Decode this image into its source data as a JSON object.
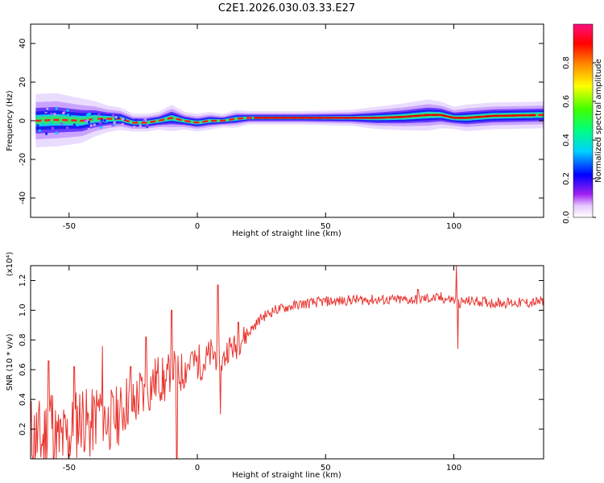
{
  "chart_data": [
    {
      "type": "heatmap",
      "title": "C2E1.2026.030.03.33.E27",
      "xlabel": "Height of straight line (km)",
      "ylabel": "Frequency (Hz)",
      "xlim": [
        -65,
        135
      ],
      "ylim": [
        -50,
        50
      ],
      "xticks": [
        -50,
        0,
        50,
        100
      ],
      "yticks": [
        -40,
        -20,
        0,
        20,
        40
      ],
      "colorbar": {
        "label": "Normalized spectral amplitude",
        "range": [
          0,
          1
        ],
        "ticks": [
          0.0,
          0.2,
          0.4,
          0.6,
          0.8
        ]
      },
      "band": {
        "x": [
          -63,
          -55,
          -45,
          -40,
          -35,
          -30,
          -25,
          -20,
          -15,
          -10,
          -5,
          0,
          5,
          10,
          15,
          20,
          40,
          60,
          70,
          80,
          90,
          95,
          100,
          105,
          115,
          135
        ],
        "center_hz": [
          0,
          0.5,
          0,
          1,
          1,
          1,
          -1,
          -1,
          0,
          1.5,
          0,
          -1,
          0,
          0,
          1,
          1.5,
          1.5,
          1.5,
          1.5,
          2,
          3,
          3,
          1.5,
          1.5,
          2.5,
          3
        ],
        "halfwidth_hz": [
          6,
          6,
          5,
          4,
          3,
          2.5,
          2,
          2,
          2,
          3,
          2,
          2,
          2,
          1.5,
          2,
          1.5,
          1.5,
          1.8,
          2.5,
          3,
          3.5,
          3,
          2.5,
          3,
          3,
          3
        ]
      }
    },
    {
      "type": "line",
      "xlabel": "Height of straight line (km)",
      "ylabel": "SNR (10 * v/v)",
      "y_multiplier_label": "(x10⁴)",
      "xlim": [
        -65,
        135
      ],
      "ylim": [
        0,
        1.3
      ],
      "xticks": [
        -50,
        0,
        50,
        100
      ],
      "yticks": [
        0.2,
        0.4,
        0.6,
        0.8,
        1.0,
        1.2
      ],
      "ytick_labels": [
        "0.2",
        "0.4",
        "0.6",
        "0.8",
        "1.0",
        "1.2"
      ],
      "series": [
        {
          "name": "SNR",
          "color": "#e8352f",
          "x": [
            -65,
            -60,
            -57,
            -55,
            -50,
            -45,
            -42,
            -38,
            -35,
            -30,
            -27,
            -25,
            -22,
            -20,
            -18,
            -15,
            -12,
            -10,
            -8,
            -5,
            -3,
            0,
            3,
            5,
            8,
            10,
            12,
            15,
            17,
            20,
            25,
            30,
            35,
            40,
            45,
            50,
            55,
            60,
            65,
            70,
            75,
            80,
            85,
            90,
            95,
            100,
            102,
            105,
            110,
            115,
            120,
            125,
            130,
            135
          ],
          "values": [
            0.15,
            0.12,
            0.3,
            0.1,
            0.15,
            0.3,
            0.2,
            0.35,
            0.25,
            0.3,
            0.4,
            0.35,
            0.45,
            0.4,
            0.5,
            0.55,
            0.5,
            0.65,
            0.55,
            0.6,
            0.65,
            0.65,
            0.65,
            0.7,
            0.7,
            0.65,
            0.75,
            0.75,
            0.8,
            0.85,
            0.95,
            1.0,
            1.02,
            1.04,
            1.05,
            1.06,
            1.06,
            1.07,
            1.07,
            1.07,
            1.07,
            1.07,
            1.07,
            1.08,
            1.08,
            1.07,
            1.05,
            1.06,
            1.06,
            1.05,
            1.05,
            1.05,
            1.05,
            1.06
          ],
          "spikes": [
            {
              "x": -58,
              "value": 0.66
            },
            {
              "x": -48,
              "value": 0.62
            },
            {
              "x": -37,
              "value": 0.76
            },
            {
              "x": -26,
              "value": 0.62
            },
            {
              "x": -20,
              "value": 0.82
            },
            {
              "x": -10,
              "value": 1.0
            },
            {
              "x": -8,
              "value": 0.0
            },
            {
              "x": -2,
              "value": 0.72
            },
            {
              "x": 8,
              "value": 1.17
            },
            {
              "x": 9,
              "value": 0.3
            },
            {
              "x": 16,
              "value": 0.92
            },
            {
              "x": 86,
              "value": 1.14
            },
            {
              "x": 95,
              "value": 1.12
            },
            {
              "x": 101,
              "value": 1.3
            },
            {
              "x": 101.5,
              "value": 0.74
            }
          ]
        }
      ]
    }
  ]
}
